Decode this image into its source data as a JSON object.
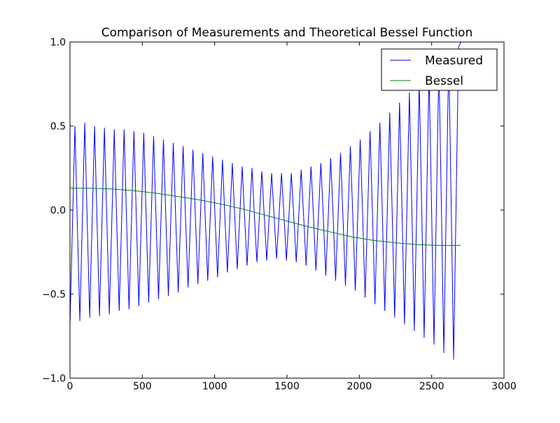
{
  "chart_data": {
    "type": "line",
    "title": "Comparison of Measurements and Theoretical Bessel Function",
    "xlim": [
      0,
      3000
    ],
    "xticks": [
      0,
      500,
      1000,
      1500,
      2000,
      2500,
      3000
    ],
    "ylim": [
      -1,
      1
    ],
    "yticks": [
      {
        "value": -1,
        "label": "−1.0"
      },
      {
        "value": -0.5,
        "label": "−0.5"
      },
      {
        "value": 0,
        "label": "0.0"
      },
      0.5,
      {
        "value": 1,
        "label": "1.0"
      }
    ],
    "legend": "upper right",
    "series": [
      {
        "name": "Measured",
        "color": "#0000ff",
        "x": [
          0,
          17,
          34,
          51,
          68,
          85,
          102,
          119,
          136,
          153,
          170,
          187,
          204,
          221,
          238,
          255,
          272,
          289,
          306,
          323,
          340,
          357,
          374,
          391,
          408,
          425,
          442,
          459,
          476,
          493,
          510,
          527,
          544,
          561,
          578,
          595,
          612,
          629,
          646,
          663,
          680,
          697,
          714,
          731,
          748,
          765,
          782,
          799,
          816,
          833,
          850,
          867,
          884,
          901,
          918,
          935,
          952,
          969,
          986,
          1003,
          1020,
          1037,
          1054,
          1071,
          1088,
          1105,
          1122,
          1139,
          1156,
          1173,
          1190,
          1207,
          1224,
          1241,
          1258,
          1275,
          1292,
          1309,
          1326,
          1343,
          1360,
          1377,
          1394,
          1411,
          1428,
          1445,
          1462,
          1479,
          1496,
          1513,
          1530,
          1547,
          1564,
          1581,
          1598,
          1615,
          1632,
          1649,
          1666,
          1683,
          1700,
          1717,
          1734,
          1751,
          1768,
          1785,
          1802,
          1819,
          1836,
          1853,
          1870,
          1887,
          1904,
          1921,
          1938,
          1955,
          1972,
          1989,
          2006,
          2023,
          2040,
          2057,
          2074,
          2091,
          2108,
          2125,
          2142,
          2159,
          2176,
          2193,
          2210,
          2227,
          2244,
          2261,
          2278,
          2295,
          2312,
          2329,
          2346,
          2363,
          2380,
          2397,
          2414,
          2431,
          2448,
          2465,
          2482,
          2499,
          2516,
          2533,
          2550,
          2567,
          2584,
          2601,
          2618,
          2635,
          2652,
          2669,
          2686,
          2703
        ],
        "values": [
          -0.68,
          -0.09,
          0.5,
          -0.09,
          -0.66,
          -0.07,
          0.52,
          -0.07,
          -0.64,
          -0.07,
          0.5,
          -0.07,
          -0.63,
          -0.07,
          0.49,
          -0.07,
          -0.62,
          -0.07,
          0.48,
          -0.07,
          -0.6,
          -0.06,
          0.48,
          -0.06,
          -0.59,
          -0.06,
          0.47,
          -0.06,
          -0.57,
          -0.055,
          0.46,
          -0.055,
          -0.55,
          -0.055,
          0.44,
          -0.055,
          -0.53,
          -0.055,
          0.42,
          -0.055,
          -0.51,
          -0.055,
          0.4,
          -0.055,
          -0.49,
          -0.055,
          0.38,
          -0.055,
          -0.46,
          -0.05,
          0.36,
          -0.05,
          -0.44,
          -0.05,
          0.34,
          -0.05,
          -0.42,
          -0.05,
          0.32,
          -0.05,
          -0.4,
          -0.05,
          0.3,
          -0.05,
          -0.37,
          -0.045,
          0.28,
          -0.045,
          -0.35,
          -0.045,
          0.26,
          -0.045,
          -0.33,
          -0.04,
          0.25,
          -0.04,
          -0.31,
          -0.04,
          0.23,
          -0.04,
          -0.3,
          -0.04,
          0.22,
          -0.04,
          -0.29,
          -0.035,
          0.22,
          -0.035,
          -0.3,
          -0.04,
          0.22,
          -0.04,
          -0.31,
          -0.035,
          0.24,
          -0.035,
          -0.33,
          -0.035,
          0.26,
          -0.035,
          -0.36,
          -0.04,
          0.28,
          -0.04,
          -0.39,
          -0.04,
          0.31,
          -0.04,
          -0.42,
          -0.04,
          0.34,
          -0.04,
          -0.45,
          -0.035,
          0.38,
          -0.035,
          -0.48,
          -0.03,
          0.42,
          -0.03,
          -0.52,
          -0.025,
          0.47,
          -0.025,
          -0.56,
          -0.02,
          0.52,
          -0.02,
          -0.6,
          -0.01,
          0.58,
          -0.01,
          -0.64,
          0,
          0.64,
          0,
          -0.68,
          0.01,
          0.7,
          0.01,
          -0.72,
          0.02,
          0.76,
          0.02,
          -0.76,
          0.03,
          0.82,
          0.03,
          -0.8,
          0.035,
          0.87,
          0.035,
          -0.85,
          0.035,
          0.92,
          0.035,
          -0.89,
          0.04,
          0.97,
          1.0
        ]
      },
      {
        "name": "Bessel",
        "color": "#008000",
        "x": [
          0,
          150,
          300,
          450,
          600,
          750,
          900,
          1050,
          1200,
          1350,
          1500,
          1650,
          1800,
          1950,
          2100,
          2250,
          2400,
          2550,
          2700
        ],
        "values": [
          0.13,
          0.13,
          0.125,
          0.115,
          0.1,
          0.08,
          0.06,
          0.035,
          0.005,
          -0.03,
          -0.065,
          -0.1,
          -0.13,
          -0.16,
          -0.18,
          -0.195,
          -0.205,
          -0.21,
          -0.21
        ]
      }
    ]
  }
}
